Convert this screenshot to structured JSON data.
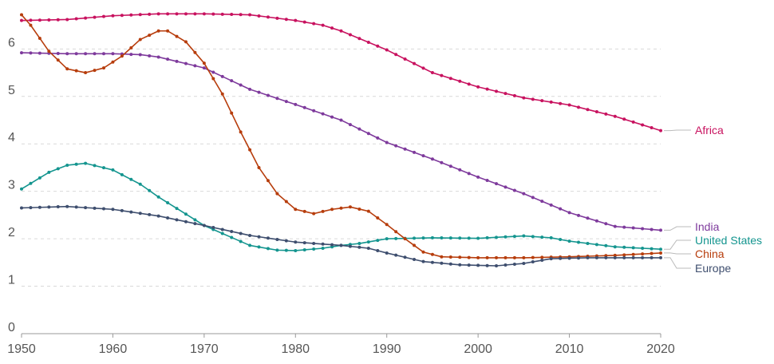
{
  "chart_data": {
    "type": "line",
    "title": "",
    "xlabel": "",
    "ylabel": "",
    "xlim": [
      1950,
      2020
    ],
    "ylim": [
      0,
      6.5
    ],
    "x_ticks": [
      "1950",
      "1960",
      "1970",
      "1980",
      "1990",
      "2000",
      "2010",
      "2020"
    ],
    "y_ticks": [
      "0",
      "1",
      "2",
      "3",
      "4",
      "5",
      "6"
    ],
    "grid": "horizontal dashed",
    "legend": "right, labels at line ends",
    "series": [
      {
        "name": "Africa",
        "color": "#c8125f",
        "points": [
          [
            1950,
            6.6
          ],
          [
            1955,
            6.62
          ],
          [
            1960,
            6.7
          ],
          [
            1965,
            6.74
          ],
          [
            1970,
            6.74
          ],
          [
            1975,
            6.72
          ],
          [
            1980,
            6.6
          ],
          [
            1983,
            6.5
          ],
          [
            1985,
            6.38
          ],
          [
            1990,
            5.98
          ],
          [
            1995,
            5.5
          ],
          [
            2000,
            5.2
          ],
          [
            2005,
            4.97
          ],
          [
            2010,
            4.82
          ],
          [
            2015,
            4.58
          ],
          [
            2020,
            4.28
          ]
        ]
      },
      {
        "name": "India",
        "color": "#7e3a9c",
        "points": [
          [
            1950,
            5.92
          ],
          [
            1955,
            5.9
          ],
          [
            1960,
            5.9
          ],
          [
            1963,
            5.88
          ],
          [
            1965,
            5.83
          ],
          [
            1970,
            5.6
          ],
          [
            1975,
            5.15
          ],
          [
            1980,
            4.83
          ],
          [
            1985,
            4.5
          ],
          [
            1990,
            4.03
          ],
          [
            1995,
            3.68
          ],
          [
            2000,
            3.3
          ],
          [
            2005,
            2.95
          ],
          [
            2010,
            2.55
          ],
          [
            2015,
            2.26
          ],
          [
            2020,
            2.18
          ]
        ]
      },
      {
        "name": "United States",
        "color": "#14958f",
        "points": [
          [
            1950,
            3.05
          ],
          [
            1953,
            3.4
          ],
          [
            1955,
            3.55
          ],
          [
            1957,
            3.59
          ],
          [
            1960,
            3.45
          ],
          [
            1963,
            3.15
          ],
          [
            1965,
            2.88
          ],
          [
            1970,
            2.28
          ],
          [
            1975,
            1.86
          ],
          [
            1978,
            1.76
          ],
          [
            1980,
            1.75
          ],
          [
            1983,
            1.8
          ],
          [
            1985,
            1.86
          ],
          [
            1987,
            1.9
          ],
          [
            1990,
            2.0
          ],
          [
            1995,
            2.02
          ],
          [
            2000,
            2.01
          ],
          [
            2005,
            2.06
          ],
          [
            2008,
            2.02
          ],
          [
            2010,
            1.95
          ],
          [
            2015,
            1.83
          ],
          [
            2020,
            1.78
          ]
        ]
      },
      {
        "name": "China",
        "color": "#b73d0c",
        "points": [
          [
            1950,
            6.72
          ],
          [
            1951,
            6.5
          ],
          [
            1953,
            5.95
          ],
          [
            1955,
            5.58
          ],
          [
            1957,
            5.5
          ],
          [
            1959,
            5.6
          ],
          [
            1961,
            5.85
          ],
          [
            1963,
            6.2
          ],
          [
            1965,
            6.38
          ],
          [
            1966,
            6.38
          ],
          [
            1968,
            6.15
          ],
          [
            1970,
            5.7
          ],
          [
            1972,
            5.05
          ],
          [
            1974,
            4.25
          ],
          [
            1976,
            3.5
          ],
          [
            1978,
            2.95
          ],
          [
            1980,
            2.62
          ],
          [
            1982,
            2.53
          ],
          [
            1984,
            2.62
          ],
          [
            1986,
            2.67
          ],
          [
            1988,
            2.58
          ],
          [
            1990,
            2.3
          ],
          [
            1992,
            2.0
          ],
          [
            1994,
            1.72
          ],
          [
            1996,
            1.62
          ],
          [
            2000,
            1.6
          ],
          [
            2005,
            1.6
          ],
          [
            2010,
            1.62
          ],
          [
            2015,
            1.65
          ],
          [
            2020,
            1.7
          ]
        ]
      },
      {
        "name": "Europe",
        "color": "#3e4e6e",
        "points": [
          [
            1950,
            2.65
          ],
          [
            1955,
            2.68
          ],
          [
            1960,
            2.62
          ],
          [
            1965,
            2.48
          ],
          [
            1970,
            2.28
          ],
          [
            1975,
            2.07
          ],
          [
            1980,
            1.93
          ],
          [
            1985,
            1.86
          ],
          [
            1988,
            1.8
          ],
          [
            1990,
            1.7
          ],
          [
            1994,
            1.52
          ],
          [
            1998,
            1.45
          ],
          [
            2002,
            1.43
          ],
          [
            2005,
            1.48
          ],
          [
            2008,
            1.58
          ],
          [
            2012,
            1.6
          ],
          [
            2015,
            1.6
          ],
          [
            2020,
            1.6
          ]
        ]
      }
    ]
  }
}
